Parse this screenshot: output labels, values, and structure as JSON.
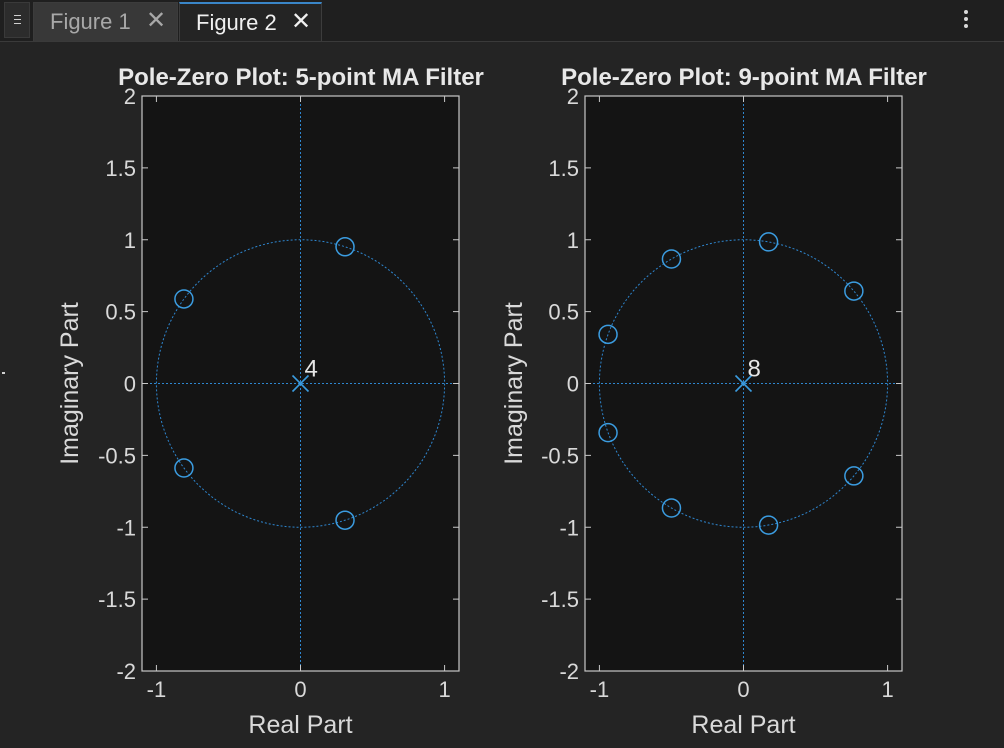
{
  "tabs": [
    {
      "label": "Figure 1",
      "active": false
    },
    {
      "label": "Figure 2",
      "active": true
    }
  ],
  "icons": {
    "close": "✕",
    "menu": "hamburger-menu-icon",
    "more": "vertical-ellipsis-icon"
  },
  "colors": {
    "background": "#242424",
    "axes_background": "#141414",
    "axes_text": "#d9d9d9",
    "marker": "#3b9ce0",
    "reference_lines": "#2e86cf"
  },
  "chart_data": [
    {
      "type": "scatter",
      "title": "Pole-Zero Plot: 5-point MA Filter",
      "xlabel": "Real Part",
      "ylabel": "Imaginary Part",
      "xlim": [
        -1.1,
        1.1
      ],
      "ylim": [
        -2,
        2
      ],
      "xticks": [
        -1,
        0,
        1
      ],
      "yticks": [
        -2,
        -1.5,
        -1,
        -0.5,
        0,
        0.5,
        1,
        1.5,
        2
      ],
      "unit_circle": true,
      "zeros": [
        {
          "x": 0.309,
          "y": 0.951
        },
        {
          "x": -0.809,
          "y": 0.588
        },
        {
          "x": -0.809,
          "y": -0.588
        },
        {
          "x": 0.309,
          "y": -0.951
        }
      ],
      "poles": [
        {
          "x": 0,
          "y": 0
        }
      ],
      "pole_multiplicity": "4"
    },
    {
      "type": "scatter",
      "title": "Pole-Zero Plot: 9-point MA Filter",
      "xlabel": "Real Part",
      "ylabel": "Imaginary Part",
      "xlim": [
        -1.1,
        1.1
      ],
      "ylim": [
        -2,
        2
      ],
      "xticks": [
        -1,
        0,
        1
      ],
      "yticks": [
        -2,
        -1.5,
        -1,
        -0.5,
        0,
        0.5,
        1,
        1.5,
        2
      ],
      "unit_circle": true,
      "zeros": [
        {
          "x": 0.174,
          "y": 0.985
        },
        {
          "x": 0.766,
          "y": 0.643
        },
        {
          "x": -0.5,
          "y": 0.866
        },
        {
          "x": -0.94,
          "y": 0.342
        },
        {
          "x": -0.94,
          "y": -0.342
        },
        {
          "x": -0.5,
          "y": -0.866
        },
        {
          "x": 0.766,
          "y": -0.643
        },
        {
          "x": 0.174,
          "y": -0.985
        }
      ],
      "poles": [
        {
          "x": 0,
          "y": 0
        }
      ],
      "pole_multiplicity": "8"
    }
  ]
}
